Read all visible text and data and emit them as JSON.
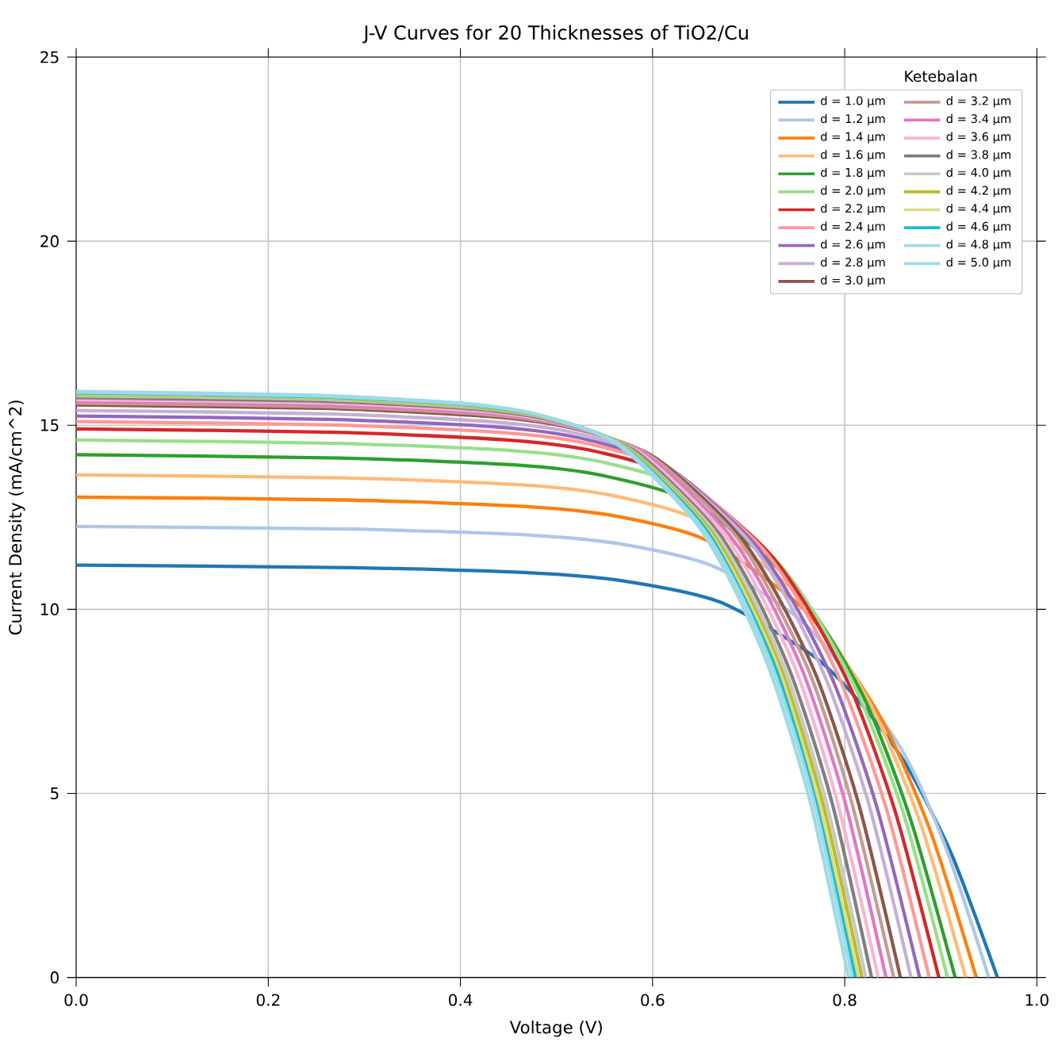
{
  "chart_data": {
    "type": "line",
    "title": "J-V Curves for 20 Thicknesses of TiO2/Cu",
    "xlabel": "Voltage (V)",
    "ylabel": "Current Density (mA/cm^2)",
    "legend_title": "Ketebalan",
    "legend": "top right",
    "grid": true,
    "xlim": [
      0,
      1
    ],
    "ylim": [
      0,
      25
    ],
    "xticks": [
      {
        "value": 0,
        "label": "0.0"
      },
      {
        "value": 0.2,
        "label": "0.2"
      },
      {
        "value": 0.4,
        "label": "0.4"
      },
      {
        "value": 0.6,
        "label": "0.6"
      },
      {
        "value": 0.8,
        "label": "0.8"
      },
      {
        "value": 1,
        "label": "1.0"
      }
    ],
    "yticks": [
      0,
      5,
      10,
      15,
      20,
      25
    ],
    "series": [
      {
        "name": "d = 1.0 μm",
        "color": "#1f77b4",
        "x": [
          0,
          0.288,
          0.48,
          0.575,
          0.671,
          0.767,
          0.815,
          0.863,
          0.911,
          0.959
        ],
        "values": [
          11.2,
          11.13,
          10.98,
          10.75,
          10.19,
          8.74,
          7.5,
          5.82,
          3.36,
          0
        ]
      },
      {
        "name": "d = 1.2 μm",
        "color": "#aec7e8",
        "x": [
          0,
          0.285,
          0.475,
          0.57,
          0.665,
          0.76,
          0.808,
          0.855,
          0.903,
          0.95
        ],
        "values": [
          12.25,
          12.18,
          12.01,
          11.76,
          11.15,
          9.56,
          null,
          6.37,
          3.68,
          0
        ]
      },
      {
        "name": "d = 1.4 μm",
        "color": "#ff7f0e",
        "x": [
          0,
          0.281,
          0.469,
          0.562,
          0.656,
          0.75,
          0.796,
          0.843,
          0.89,
          0.937
        ],
        "values": [
          13.05,
          12.97,
          12.79,
          12.53,
          11.88,
          10.18,
          8.74,
          6.79,
          3.92,
          0
        ]
      },
      {
        "name": "d = 1.6 μm",
        "color": "#ffbb78",
        "x": [
          0,
          0.278,
          0.463,
          0.556,
          0.648,
          0.741,
          0.787,
          0.833,
          0.88,
          0.926
        ],
        "values": [
          13.65,
          13.57,
          13.38,
          13.1,
          12.42,
          10.65,
          9.15,
          7.1,
          4.1,
          0
        ]
      },
      {
        "name": "d = 1.8 μm",
        "color": "#2ca02c",
        "x": [
          0,
          0.275,
          0.458,
          0.549,
          0.641,
          0.732,
          0.778,
          0.824,
          0.869,
          0.915
        ],
        "values": [
          14.2,
          14.11,
          13.92,
          13.63,
          12.92,
          11.08,
          9.51,
          7.38,
          4.26,
          0
        ]
      },
      {
        "name": "d = 2.0 μm",
        "color": "#98df8a",
        "x": [
          0,
          0.272,
          0.454,
          0.544,
          0.635,
          0.726,
          0.771,
          0.816,
          0.862,
          0.907
        ],
        "values": [
          14.6,
          14.51,
          14.31,
          14.02,
          13.29,
          11.39,
          9.78,
          7.59,
          4.38,
          0
        ]
      },
      {
        "name": "d = 2.2 μm",
        "color": "#d62728",
        "x": [
          0,
          0.269,
          0.449,
          0.539,
          0.629,
          0.718,
          0.763,
          0.808,
          0.853,
          0.898
        ],
        "values": [
          14.9,
          14.81,
          14.6,
          14.3,
          13.56,
          11.62,
          9.98,
          7.75,
          4.47,
          0
        ]
      },
      {
        "name": "d = 2.4 μm",
        "color": "#ff9896",
        "x": [
          0,
          0.266,
          0.444,
          0.533,
          0.622,
          0.71,
          0.755,
          0.799,
          0.844,
          0.888
        ],
        "values": [
          15.1,
          15.01,
          14.8,
          14.5,
          13.74,
          11.78,
          10.12,
          7.85,
          4.53,
          0
        ]
      },
      {
        "name": "d = 2.6 μm",
        "color": "#9467bd",
        "x": [
          0,
          0.263,
          0.439,
          0.527,
          0.615,
          0.702,
          0.746,
          0.79,
          0.834,
          0.878
        ],
        "values": [
          15.25,
          15.16,
          14.95,
          14.64,
          13.88,
          11.9,
          10.22,
          7.93,
          4.58,
          0
        ]
      },
      {
        "name": "d = 2.8 μm",
        "color": "#c5b0d5",
        "x": [
          0,
          0.261,
          0.435,
          0.521,
          0.608,
          0.695,
          0.739,
          0.782,
          0.826,
          0.869
        ],
        "values": [
          15.4,
          15.31,
          15.09,
          14.78,
          14.01,
          12.01,
          10.32,
          8.01,
          4.62,
          0
        ]
      },
      {
        "name": "d = 3.0 μm",
        "color": "#8c564b",
        "x": [
          0,
          0.257,
          0.429,
          0.515,
          0.601,
          0.686,
          0.729,
          0.772,
          0.815,
          0.858
        ],
        "values": [
          15.55,
          15.46,
          15.24,
          14.93,
          14.15,
          12.13,
          10.42,
          8.09,
          4.67,
          0
        ]
      },
      {
        "name": "d = 3.2 μm",
        "color": "#c49c94",
        "x": [
          0,
          0.255,
          0.426,
          0.511,
          0.596,
          0.681,
          0.723,
          0.766,
          0.808,
          0.851
        ],
        "values": [
          15.6,
          15.51,
          15.29,
          14.98,
          14.2,
          12.17,
          10.45,
          8.11,
          4.68,
          0
        ]
      },
      {
        "name": "d = 3.4 μm",
        "color": "#e377c2",
        "x": [
          0,
          0.253,
          0.422,
          0.506,
          0.59,
          0.674,
          0.717,
          0.759,
          0.801,
          0.843
        ],
        "values": [
          15.65,
          15.56,
          15.34,
          15.02,
          14.24,
          12.21,
          10.49,
          8.14,
          4.7,
          0
        ]
      },
      {
        "name": "d = 3.6 μm",
        "color": "#f7b6d2",
        "x": [
          0,
          0.251,
          0.418,
          0.501,
          0.585,
          0.668,
          0.71,
          0.752,
          0.793,
          0.835
        ],
        "values": [
          15.7,
          15.61,
          15.39,
          15.07,
          14.29,
          12.25,
          10.52,
          8.16,
          4.71,
          0
        ]
      },
      {
        "name": "d = 3.8 μm",
        "color": "#7f7f7f",
        "x": [
          0,
          0.248,
          0.414,
          0.497,
          0.58,
          0.662,
          0.704,
          0.745,
          0.787,
          0.828
        ],
        "values": [
          15.75,
          15.66,
          15.44,
          15.12,
          14.33,
          12.29,
          10.55,
          8.19,
          4.73,
          0
        ]
      },
      {
        "name": "d = 4.0 μm",
        "color": "#c7c7c7",
        "x": [
          0,
          0.247,
          0.411,
          0.493,
          0.575,
          0.658,
          0.699,
          0.74,
          0.781,
          0.822
        ],
        "values": [
          15.8,
          15.71,
          15.48,
          15.17,
          14.38,
          12.32,
          10.59,
          8.22,
          4.74,
          0
        ]
      },
      {
        "name": "d = 4.2 μm",
        "color": "#bcbd22",
        "x": [
          0,
          0.245,
          0.409,
          0.491,
          0.573,
          0.654,
          0.695,
          0.736,
          0.777,
          0.818
        ],
        "values": [
          15.83,
          15.74,
          15.51,
          15.2,
          14.41,
          12.35,
          10.61,
          8.23,
          4.75,
          0
        ]
      },
      {
        "name": "d = 4.4 μm",
        "color": "#dbdb8d",
        "x": [
          0,
          0.244,
          0.407,
          0.488,
          0.57,
          0.651,
          0.692,
          0.733,
          0.773,
          0.814
        ],
        "values": [
          15.86,
          15.76,
          15.54,
          15.23,
          14.43,
          12.37,
          10.63,
          8.25,
          4.76,
          0
        ]
      },
      {
        "name": "d = 4.6 μm",
        "color": "#17becf",
        "x": [
          0,
          0.243,
          0.406,
          0.487,
          0.568,
          0.649,
          0.689,
          0.73,
          0.77,
          0.811
        ],
        "values": [
          15.88,
          15.78,
          15.56,
          15.24,
          14.45,
          12.39,
          10.64,
          8.26,
          4.76,
          0
        ]
      },
      {
        "name": "d = 4.8 μm",
        "color": "#9edae5",
        "x": [
          0,
          0.242,
          0.404,
          0.485,
          0.566,
          0.646,
          0.687,
          0.727,
          0.768,
          0.808
        ],
        "values": [
          15.9,
          15.8,
          15.58,
          15.26,
          14.47,
          12.4,
          10.65,
          8.27,
          4.77,
          0
        ]
      },
      {
        "name": "d = 5.0 μm",
        "color": "#9edae5",
        "x": [
          0,
          0.241,
          0.402,
          0.482,
          0.563,
          0.643,
          0.683,
          0.723,
          0.764,
          0.804
        ],
        "values": [
          15.92,
          15.82,
          15.6,
          15.28,
          14.49,
          12.42,
          10.67,
          8.28,
          4.78,
          0
        ]
      }
    ]
  }
}
